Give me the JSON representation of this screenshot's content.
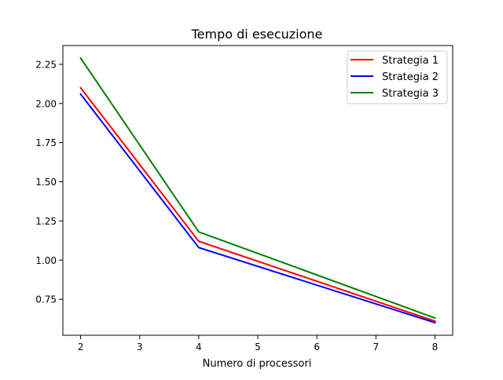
{
  "chart_data": {
    "type": "line",
    "title": "Tempo di esecuzione",
    "xlabel": "Numero di processori",
    "ylabel": "",
    "x": [
      2,
      4,
      8
    ],
    "xlim": [
      1.7,
      8.3
    ],
    "ylim": [
      0.52,
      2.37
    ],
    "xticks": [
      2,
      3,
      4,
      5,
      6,
      7,
      8
    ],
    "yticks": [
      0.75,
      1.0,
      1.25,
      1.5,
      1.75,
      2.0,
      2.25
    ],
    "xtick_labels": [
      "2",
      "3",
      "4",
      "5",
      "6",
      "7",
      "8"
    ],
    "ytick_labels": [
      "0.75",
      "1.00",
      "1.25",
      "1.50",
      "1.75",
      "2.00",
      "2.25"
    ],
    "grid": false,
    "legend_position": "top-right",
    "series": [
      {
        "name": "Strategia 1",
        "color": "#ff0000",
        "values": [
          2.1,
          1.12,
          0.61
        ]
      },
      {
        "name": "Strategia 2",
        "color": "#0000ff",
        "values": [
          2.06,
          1.08,
          0.6
        ]
      },
      {
        "name": "Strategia 3",
        "color": "#008000",
        "values": [
          2.29,
          1.18,
          0.63
        ]
      }
    ]
  }
}
